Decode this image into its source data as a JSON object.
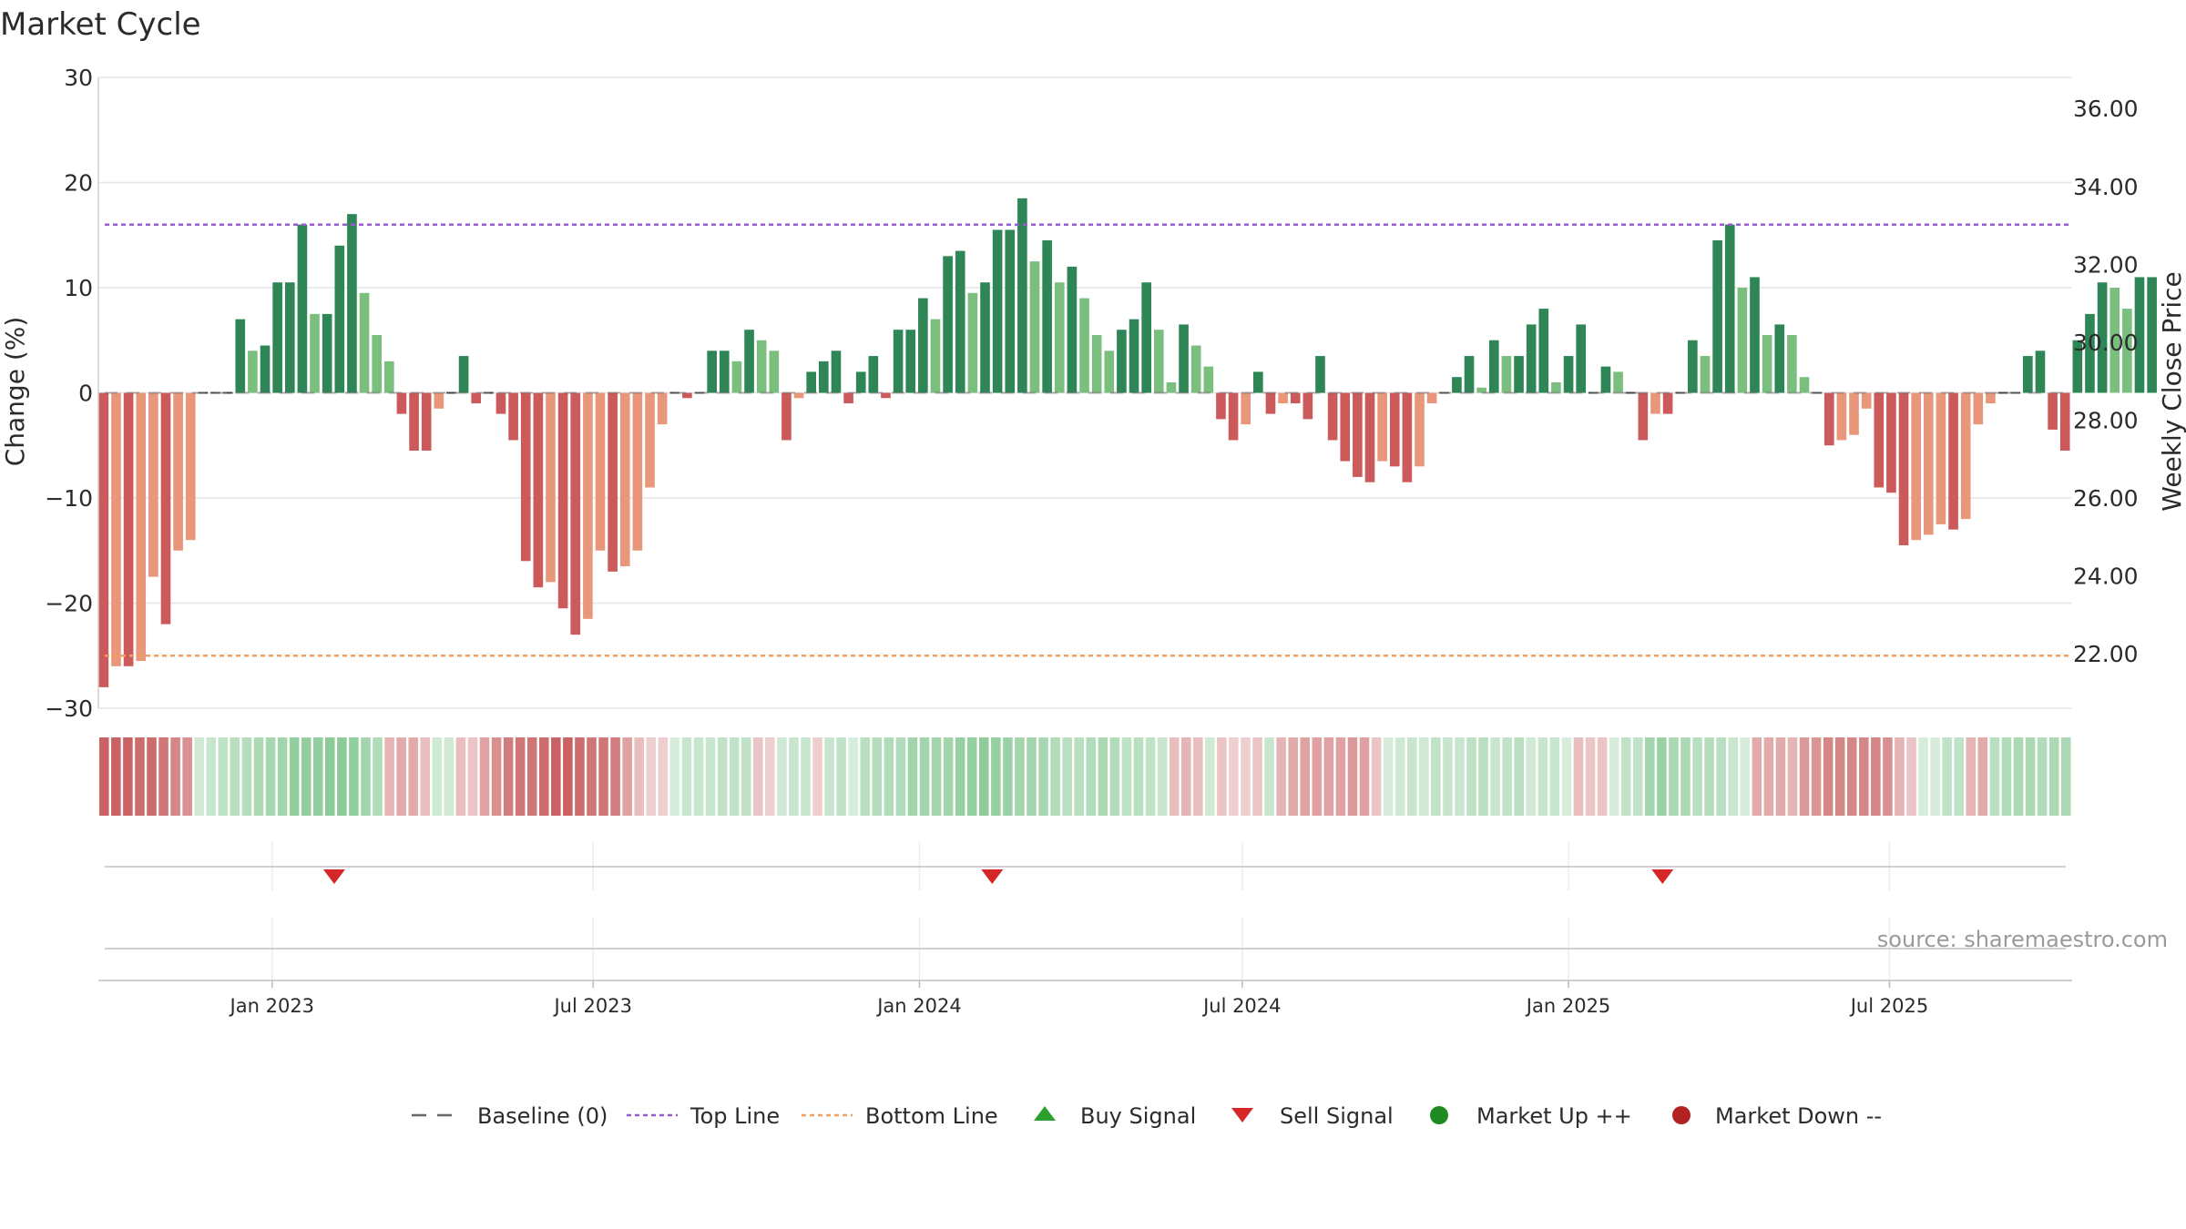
{
  "chart_data": {
    "type": "bar",
    "title": "Market Cycle",
    "ylabel_left": "Change (%)",
    "ylabel_right": "Weekly Close Price",
    "ylim_left": [
      -30,
      30
    ],
    "y_ticks_left": [
      30,
      20,
      10,
      0,
      -10,
      -20,
      -30
    ],
    "y_tick_labels_left": [
      "30",
      "20",
      "10",
      "0",
      "−10",
      "−20",
      "−30"
    ],
    "ylim_right": [
      20.6,
      36.8
    ],
    "y_ticks_right": [
      "36.00",
      "34.00",
      "32.00",
      "30.00",
      "28.00",
      "26.00",
      "24.00",
      "22.00"
    ],
    "x_range": [
      "2022-09-25",
      "2025-10-12"
    ],
    "x_ticks": [
      {
        "date": "2023-01-01",
        "label": "Jan 2023"
      },
      {
        "date": "2023-07-01",
        "label": "Jul 2023"
      },
      {
        "date": "2024-01-01",
        "label": "Jan 2024"
      },
      {
        "date": "2024-07-01",
        "label": "Jul 2024"
      },
      {
        "date": "2025-01-01",
        "label": "Jan 2025"
      },
      {
        "date": "2025-07-01",
        "label": "Jul 2025"
      }
    ],
    "start_week": "2022-09-25",
    "top_line": 16,
    "bottom_line": -25,
    "grid": true,
    "values": [
      -28,
      -26,
      -26,
      -25.5,
      -17.5,
      -22,
      -15,
      -14,
      0,
      0,
      0,
      7,
      4,
      4.5,
      10.5,
      10.5,
      16,
      7.5,
      7.5,
      14,
      17,
      9.5,
      5.5,
      3,
      -2,
      -5.5,
      -5.5,
      -1.5,
      0,
      3.5,
      -1,
      0,
      -2,
      -4.5,
      -16,
      -18.5,
      -18,
      -20.5,
      -23,
      -21.5,
      -15,
      -17,
      -16.5,
      -15,
      -9,
      -3,
      0,
      -0.5,
      0,
      4,
      4,
      3,
      6,
      5,
      4,
      -4.5,
      -0.5,
      2,
      3,
      4,
      -1,
      2,
      3.5,
      -0.5,
      6,
      6,
      9,
      7,
      13,
      13.5,
      9.5,
      10.5,
      15.5,
      15.5,
      18.5,
      12.5,
      14.5,
      10.5,
      12,
      9,
      5.5,
      4,
      6,
      7,
      10.5,
      6,
      1,
      6.5,
      4.5,
      2.5,
      -2.5,
      -4.5,
      -3,
      2,
      -2,
      -1,
      -1,
      -2.5,
      3.5,
      -4.5,
      -6.5,
      -8,
      -8.5,
      -6.5,
      -7,
      -8.5,
      -7,
      -1,
      0,
      1.5,
      3.5,
      0.5,
      5,
      3.5,
      3.5,
      6.5,
      8,
      1,
      3.5,
      6.5,
      0,
      2.5,
      2,
      0,
      -4.5,
      -2,
      -2,
      0,
      5,
      3.5,
      14.5,
      16,
      10,
      11,
      5.5,
      6.5,
      5.5,
      1.5,
      0,
      -5,
      -4.5,
      -4,
      -1.5,
      -9,
      -9.5,
      -14.5,
      -14,
      -13.5,
      -12.5,
      -13,
      -12,
      -3,
      -1,
      0,
      0,
      3.5,
      4,
      -3.5,
      -5.5,
      5,
      7.5,
      10.5,
      10,
      8,
      11,
      11
    ],
    "band_values": [
      -2.6,
      -2.6,
      -2.6,
      -2.4,
      -2.4,
      -2.2,
      -1.8,
      -1.6,
      0.4,
      0.6,
      0.8,
      1.0,
      1.1,
      1.3,
      1.5,
      1.6,
      2.0,
      2.0,
      2.0,
      2.2,
      2.2,
      2.0,
      1.6,
      1.2,
      -0.8,
      -1.0,
      -1.0,
      -0.6,
      0.4,
      0.4,
      -0.6,
      -0.4,
      -1.2,
      -1.6,
      -2.0,
      -2.2,
      -2.2,
      -2.4,
      -2.6,
      -2.6,
      -2.4,
      -2.2,
      -2.2,
      -2.0,
      -1.2,
      -0.6,
      -0.2,
      -0.2,
      0.2,
      0.6,
      0.6,
      0.6,
      0.8,
      0.8,
      0.8,
      -0.4,
      -0.2,
      0.4,
      0.6,
      0.6,
      -0.2,
      0.6,
      0.8,
      0.2,
      1.0,
      1.1,
      1.2,
      1.2,
      1.6,
      1.6,
      1.6,
      1.6,
      1.9,
      1.9,
      2.1,
      1.9,
      1.8,
      1.6,
      1.6,
      1.5,
      1.2,
      1.0,
      1.0,
      1.2,
      1.4,
      1.2,
      0.8,
      1.0,
      0.8,
      0.6,
      -0.6,
      -0.8,
      -0.6,
      0.4,
      -0.4,
      -0.2,
      -0.2,
      -0.4,
      0.6,
      -0.8,
      -1.0,
      -1.2,
      -1.2,
      -1.2,
      -1.2,
      -1.4,
      -1.2,
      -0.4,
      0.2,
      0.4,
      0.6,
      0.4,
      0.8,
      0.6,
      0.6,
      0.9,
      1.0,
      0.6,
      0.8,
      1.0,
      0.4,
      0.6,
      0.6,
      0.2,
      -0.6,
      -0.4,
      -0.4,
      0.2,
      0.8,
      0.8,
      1.6,
      1.8,
      1.4,
      1.4,
      1.0,
      1.1,
      1.0,
      0.6,
      0.2,
      -1.0,
      -1.0,
      -1.0,
      -0.8,
      -1.4,
      -1.5,
      -1.8,
      -1.8,
      -1.8,
      -1.8,
      -1.8,
      -1.6,
      -0.8,
      -0.4,
      0.2,
      0.2,
      0.8,
      0.8,
      -0.8,
      -1.0,
      1.0,
      1.2,
      1.4,
      1.4,
      1.2,
      1.4,
      1.4
    ],
    "sell_signals": [
      "2023-02-05",
      "2024-02-11",
      "2025-02-23"
    ],
    "buy_signals": [],
    "colors": {
      "up_strong": "#2e8555",
      "up_light": "#7bbf7f",
      "down_strong": "#cc5a5a",
      "down_light": "#e8977a",
      "top_line": "#9b59d0",
      "bottom_line": "#f0a060",
      "baseline": "#666666",
      "grid": "#e6e6e6",
      "band_green": "#7cc48a",
      "band_red": "#c96363",
      "buy": "#2ca02c",
      "sell": "#d62728",
      "market_up": "#1f8a1f",
      "market_down": "#b22222"
    }
  },
  "legend": [
    {
      "key": "baseline",
      "label": "Baseline (0)",
      "icon": "dash-line-icon"
    },
    {
      "key": "top",
      "label": "Top Line",
      "icon": "dotted-purple-line-icon"
    },
    {
      "key": "bottom",
      "label": "Bottom Line",
      "icon": "dotted-orange-line-icon"
    },
    {
      "key": "buy",
      "label": "Buy Signal",
      "icon": "triangle-up-icon"
    },
    {
      "key": "sell",
      "label": "Sell Signal",
      "icon": "triangle-down-icon"
    },
    {
      "key": "up",
      "label": "Market Up ++",
      "icon": "green-circle-icon"
    },
    {
      "key": "down",
      "label": "Market Down --",
      "icon": "red-circle-icon"
    }
  ],
  "source": "source: sharemaestro.com"
}
